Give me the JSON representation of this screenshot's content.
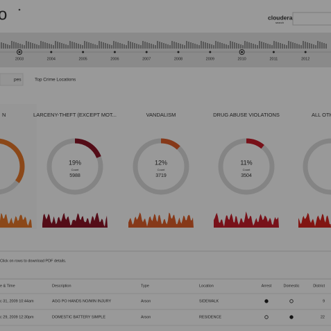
{
  "header": {
    "logo": "o",
    "brand": "cloudera",
    "brand_sub": "search"
  },
  "timeline": {
    "years": [
      "2003",
      "2004",
      "2005",
      "2006",
      "2007",
      "2008",
      "2009",
      "2010",
      "2011",
      "2012"
    ]
  },
  "tabs": [
    "pes",
    "Top Crime Locations"
  ],
  "cards": [
    {
      "title": "N",
      "color": "#e8782b"
    },
    {
      "title": "LARCENY-THEFT (EXCEPT MOT...",
      "value": 19,
      "value_label": "19%",
      "count_caption": "Count",
      "count": 5988,
      "color": "#8c1427"
    },
    {
      "title": "VANDALISM",
      "value": 12,
      "value_label": "12%",
      "count_caption": "Count",
      "count": 3719,
      "color": "#e0602a"
    },
    {
      "title": "DRUG ABUSE VIOLATIONS",
      "value": 11,
      "value_label": "11%",
      "count_caption": "Count",
      "count": 3504,
      "color": "#c81d2b"
    },
    {
      "title": "ALL OTH",
      "color": "#d8231e"
    }
  ],
  "hint": "Click on rows to download PDF details.",
  "table": {
    "columns": [
      "e & Time",
      "Description",
      "Type",
      "Location",
      "Arrest",
      "Domestic",
      "District"
    ],
    "rows": [
      [
        "c 31, 2009 10:44am",
        "AGG PO HANDS NO/MIN INJURY",
        "Arson",
        "SIDEWALK",
        true,
        false,
        9
      ],
      [
        "c 29, 2009 12:30pm",
        "DOMESTIC BATTERY SIMPLE",
        "Arson",
        "RESIDENCE",
        false,
        true,
        22
      ]
    ]
  }
}
